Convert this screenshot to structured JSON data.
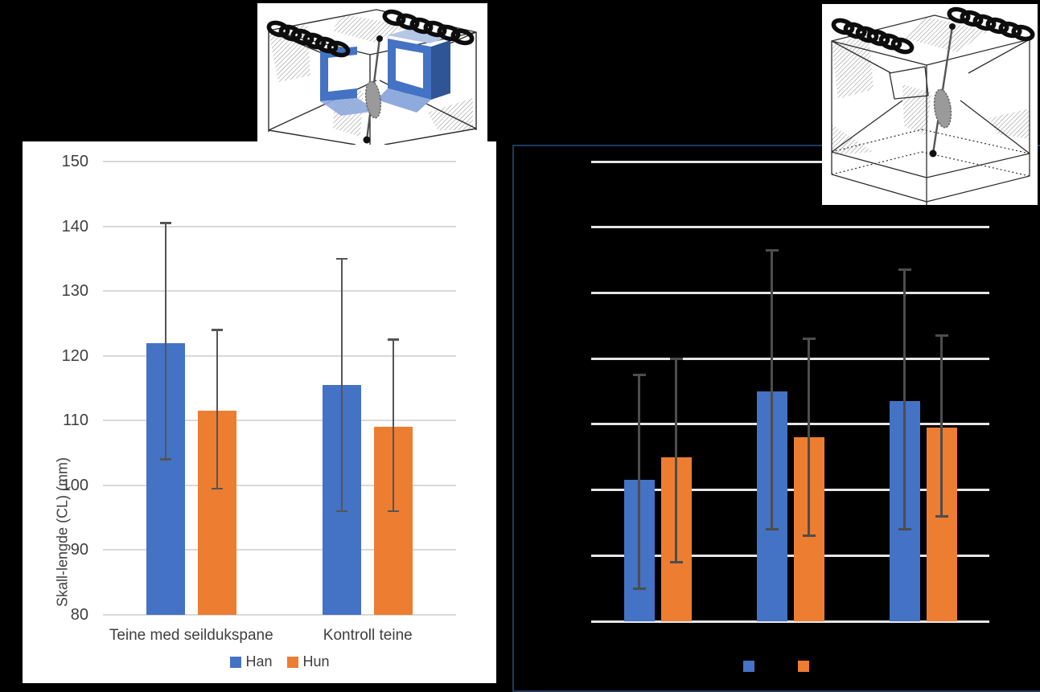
{
  "page": {
    "background": "#000000"
  },
  "colors": {
    "series_blue": "#4472C4",
    "series_orange": "#ED7D31",
    "error_bar": "#555555",
    "left_grid": "#d9d9d9",
    "right_grid": "#e6e6e6",
    "right_frame_border": "#1f3864",
    "axis_text": "#3f3f3f"
  },
  "illustrations": {
    "left": {
      "name": "pot-with-canvas-panels-drawing"
    },
    "right": {
      "name": "control-pot-drawing"
    }
  },
  "chart_data": [
    {
      "type": "bar",
      "title": "",
      "ylabel": "Skall-lengde (CL) (mm)",
      "xlabel": "",
      "ylim": [
        80,
        150
      ],
      "yticks": [
        80,
        90,
        100,
        110,
        120,
        130,
        140,
        150
      ],
      "grid": true,
      "legend_position": "bottom",
      "tick_labels_visible": true,
      "categories": [
        "Teine med seildukspane",
        "Kontroll teine"
      ],
      "series": [
        {
          "name": "Han",
          "color": "#4472C4",
          "values": [
            122,
            115.5
          ],
          "error_low": [
            104,
            96
          ],
          "error_high": [
            140.5,
            135
          ]
        },
        {
          "name": "Hun",
          "color": "#ED7D31",
          "values": [
            111.5,
            109
          ],
          "error_low": [
            99.5,
            96
          ],
          "error_high": [
            124,
            122.5
          ]
        }
      ]
    },
    {
      "type": "bar",
      "title": "",
      "ylabel": "",
      "xlabel": "",
      "ylim": [
        80,
        150
      ],
      "yticks": [
        80,
        90,
        100,
        110,
        120,
        130,
        140,
        150
      ],
      "grid": true,
      "legend_position": "bottom",
      "tick_labels_visible": false,
      "categories": [
        "",
        "",
        ""
      ],
      "series": [
        {
          "name": "",
          "color": "#4472C4",
          "values": [
            101.5,
            115,
            113.5
          ],
          "error_low": [
            85,
            94,
            94
          ],
          "error_high": [
            117.5,
            136.5,
            133.5
          ]
        },
        {
          "name": "",
          "color": "#ED7D31",
          "values": [
            105,
            108,
            109.5
          ],
          "error_low": [
            89,
            93,
            96
          ],
          "error_high": [
            120,
            123,
            123.5
          ]
        }
      ]
    }
  ]
}
